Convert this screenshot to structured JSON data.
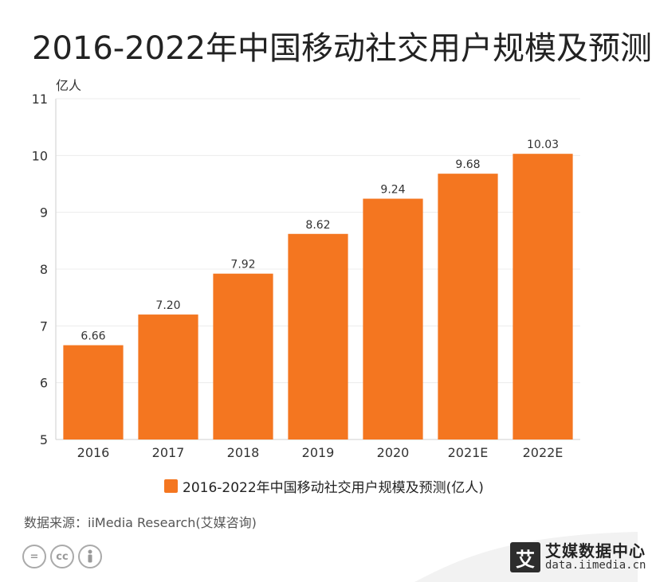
{
  "title": "2016-2022年中国移动社交用户规模及预测",
  "chart_data": {
    "type": "bar",
    "categories": [
      "2016",
      "2017",
      "2018",
      "2019",
      "2020",
      "2021E",
      "2022E"
    ],
    "series": [
      {
        "name": "2016-2022年中国移动社交用户规模及预测(亿人)",
        "values": [
          6.66,
          7.2,
          7.92,
          8.62,
          9.24,
          9.68,
          10.03
        ],
        "labels": [
          "6.66",
          "7.20",
          "7.92",
          "8.62",
          "9.24",
          "9.68",
          "10.03"
        ]
      }
    ],
    "ylabel": "亿人",
    "ylim": [
      5,
      11
    ],
    "yticks": [
      5,
      6,
      7,
      8,
      9,
      10,
      11
    ],
    "grid": true,
    "legend_position": "bottom",
    "bar_color": "#F47620"
  },
  "legend": {
    "label": "2016-2022年中国移动社交用户规模及预测(亿人)"
  },
  "source": "数据来源：iiMedia Research(艾媒咨询)",
  "license_icons": [
    "equals-icon",
    "cc-icon",
    "person-icon"
  ],
  "brand": {
    "mark": "艾",
    "name": "艾媒数据中心",
    "url": "data.iimedia.cn"
  }
}
